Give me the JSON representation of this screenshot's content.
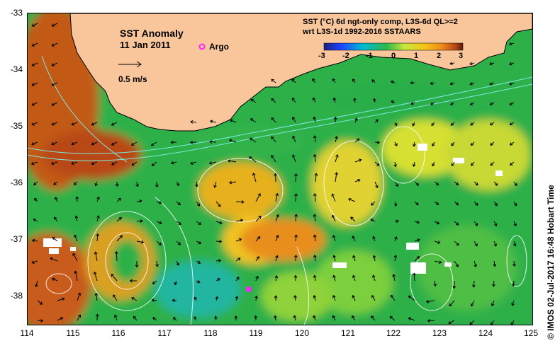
{
  "map": {
    "title": "SST Anomaly",
    "date": "11 Jan 2011",
    "argo_label": "Argo",
    "argo_color": "#ff22ff",
    "velocity_label": "0.5 m/s",
    "legend": {
      "line1": "SST (°C) 6d ngt-only comp, L3S-6d QL>=2",
      "line2": "wrt L3S-1d 1992-2016 SSTAARS",
      "ticks": [
        "-3",
        "-2",
        "-1",
        "0",
        "1",
        "2",
        "3"
      ],
      "range": [
        -3,
        3
      ],
      "colors": [
        "#1a237e",
        "#1e40ff",
        "#00bcd4",
        "#2db84a",
        "#c8e63c",
        "#f5c518",
        "#f08a1a",
        "#b04412",
        "#5a1a0a"
      ]
    },
    "land_color": "#f9c69b",
    "lat_labels": [
      "-33",
      "-34",
      "-35",
      "-36",
      "-37",
      "-38"
    ],
    "lon_labels": [
      "114",
      "115",
      "116",
      "117",
      "118",
      "119",
      "120",
      "121",
      "122",
      "123",
      "124",
      "125"
    ],
    "credit": "© IMOS 02-Jul-2017 16:48 Hobart Time",
    "bounds": {
      "lon": [
        114,
        125
      ],
      "lat": [
        -38.5,
        -33
      ]
    },
    "argo_float": {
      "lon": 118.85,
      "lat": -37.9
    }
  }
}
